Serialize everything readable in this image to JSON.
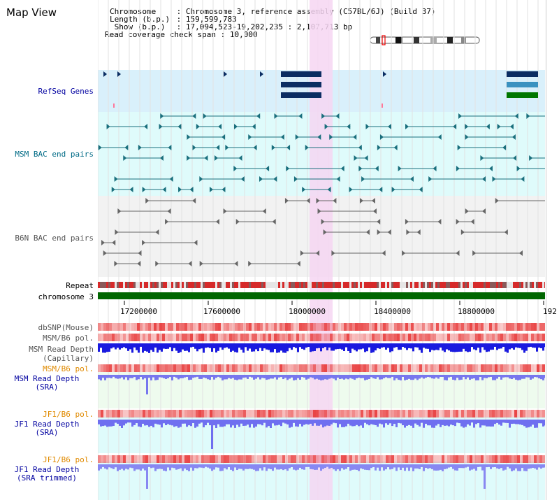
{
  "page": {
    "title": "Map View"
  },
  "header": {
    "rows": [
      {
        "key": "Chromosome",
        "sep": " : ",
        "value": "Chromosome 3, reference assembly (C57BL/6J) (Build 37)"
      },
      {
        "key": "Length (b.p.)",
        "sep": " : ",
        "value": "159,599,783"
      },
      {
        "key": " Show (b.p.)",
        "sep": " : ",
        "value": "17,094,523-19,202,235 : 2,107,713 bp"
      },
      {
        "key": "Read coverage check span",
        "sep": " : ",
        "value": "10,000"
      }
    ]
  },
  "tracks": {
    "refseq": "RefSeq Genes",
    "msm_bac": "MSM BAC end pairs",
    "b6n_bac": "B6N BAC end pairs",
    "repeat": "Repeat",
    "chromosome": "chromosome 3",
    "dbsnp": "dbSNP(Mouse)",
    "msm_b6_pol_1": "MSM/B6 pol.",
    "msm_read_depth_cap_1": "MSM Read Depth",
    "msm_read_depth_cap_2": "(Capillary)",
    "msm_b6_pol_2": "MSM/B6 pol.",
    "msm_read_depth_sra_1": "MSM Read Depth",
    "msm_read_depth_sra_2": "(SRA)",
    "jf1_b6_pol_1": "JF1/B6 pol.",
    "jf1_read_depth_sra_1": "JF1 Read Depth",
    "jf1_read_depth_sra_2": "(SRA)",
    "jf1_b6_pol_2": "JF1/B6 pol.",
    "jf1_read_depth_trim_1": "JF1 Read Depth",
    "jf1_read_depth_trim_2": "(SRA trimmed)"
  },
  "axis": {
    "ticks": [
      "17200000",
      "17600000",
      "18000000",
      "18400000",
      "18800000",
      "192"
    ]
  },
  "colors": {
    "highlight": "#f6d6f2",
    "refseq_bg": "#d9f0fb",
    "msm_bg": "#dffbfb",
    "b6n_bg": "#f2f2f2",
    "chromosome": "#006600",
    "depth": "#1a1adf"
  }
}
